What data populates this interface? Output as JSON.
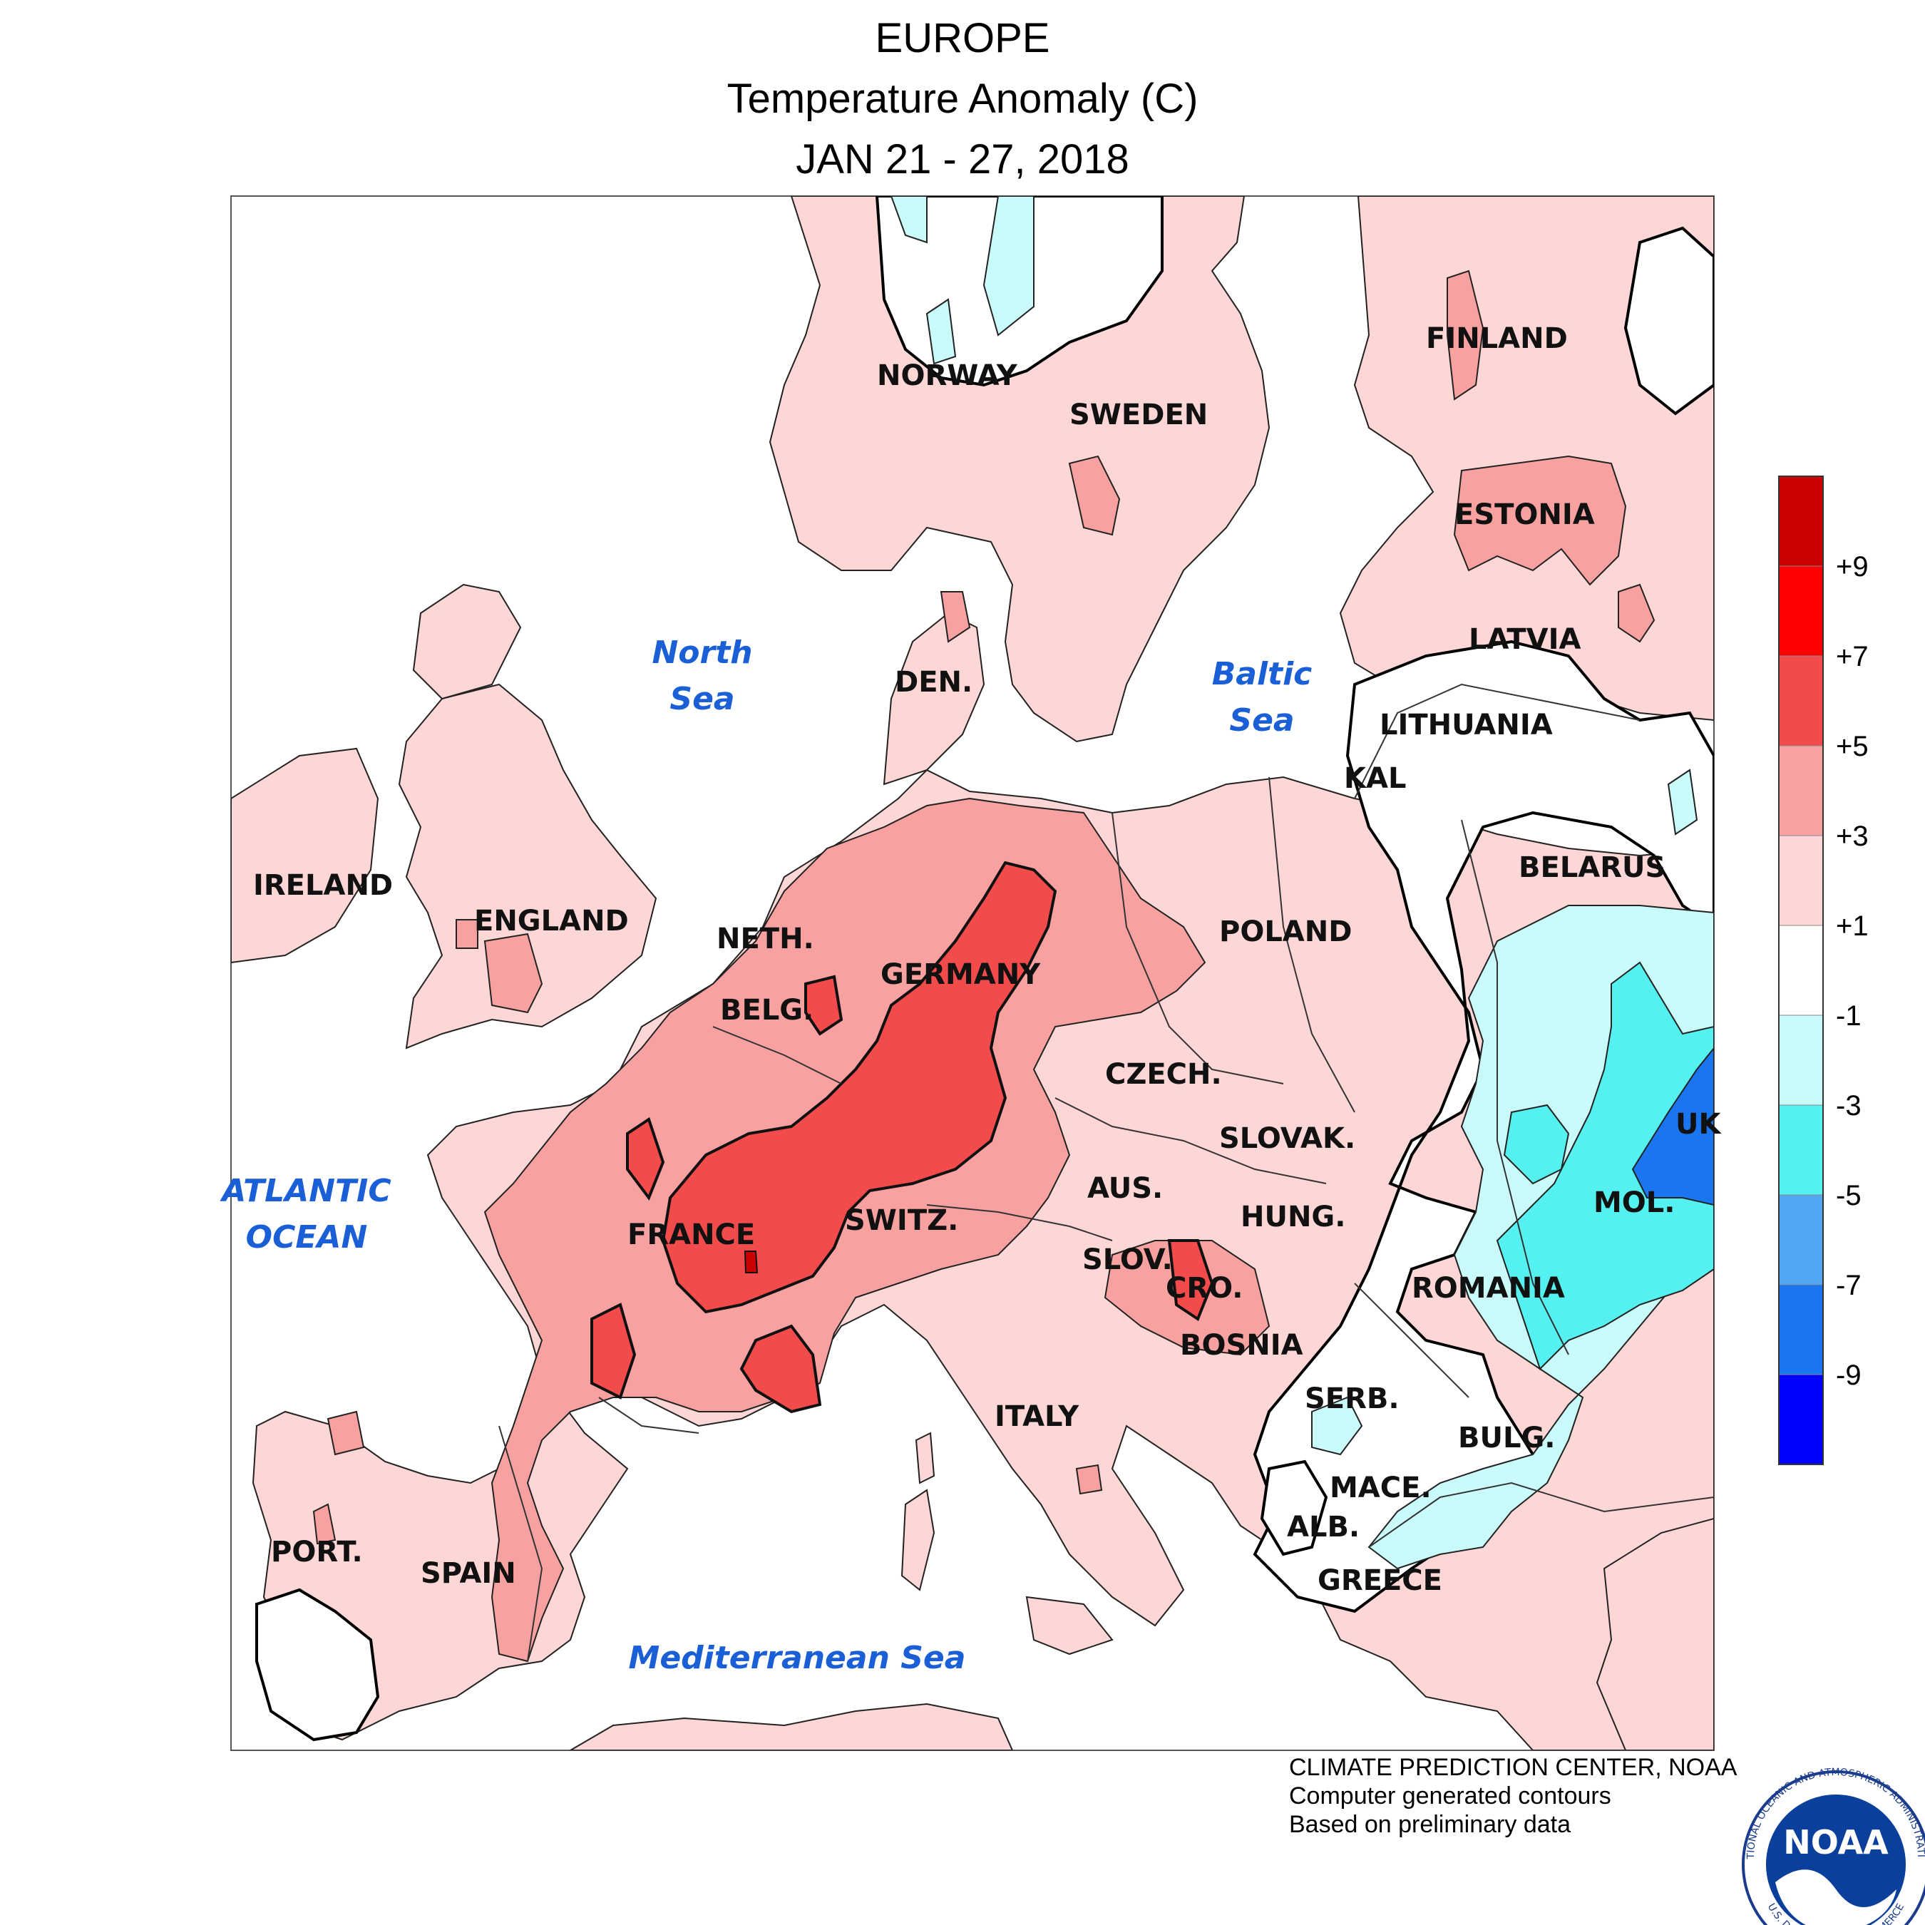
{
  "title": {
    "line1": "EUROPE",
    "line2": "Temperature Anomaly (C)",
    "line3": "JAN 21 - 27, 2018"
  },
  "colorbar": {
    "ticks": [
      "+9",
      "+7",
      "+5",
      "+3",
      "+1",
      "-1",
      "-3",
      "-5",
      "-7",
      "-9"
    ],
    "colors": [
      "#cc0000",
      "#ff0000",
      "#f24b4b",
      "#f7a1a1",
      "#fdd6d6",
      "#ffffff",
      "#c9fbfb",
      "#55f1f1",
      "#53a6f4",
      "#1a76f0",
      "#0000ff"
    ]
  },
  "anomaly_colors": {
    "plus_1_3": "#fdd6d6",
    "plus_3_5": "#f7a1a1",
    "plus_5_7": "#f24b4b",
    "plus_7_9": "#e62020",
    "minus_1_3": "#c9fbfb",
    "minus_3_5": "#55f1f1",
    "minus_7_9": "#1a76f0"
  },
  "countries": {
    "norway": "NORWAY",
    "sweden": "SWEDEN",
    "finland": "FINLAND",
    "estonia": "ESTONIA",
    "latvia": "LATVIA",
    "lithuania": "LITHUANIA",
    "kal": "KAL",
    "belarus": "BELARUS",
    "den": "DEN.",
    "ireland": "IRELAND",
    "england": "ENGLAND",
    "neth": "NETH.",
    "belg": "BELG.",
    "germany": "GERMANY",
    "poland": "POLAND",
    "czech": "CZECH.",
    "slovak": "SLOVAK.",
    "uk": "UK",
    "aus": "AUS.",
    "hung": "HUNG.",
    "mol": "MOL.",
    "france": "FRANCE",
    "switz": "SWITZ.",
    "slov": "SLOV.",
    "cro": "CRO.",
    "romania": "ROMANIA",
    "bosnia": "BOSNIA",
    "serb": "SERB.",
    "bulg": "BULG.",
    "italy": "ITALY",
    "mace": "MACE.",
    "alb": "ALB.",
    "greece": "GREECE",
    "port": "PORT.",
    "spain": "SPAIN"
  },
  "seas": {
    "north_1": "North",
    "north_2": "Sea",
    "baltic_1": "Baltic",
    "baltic_2": "Sea",
    "atlantic_1": "ATLANTIC",
    "atlantic_2": "OCEAN",
    "med": "Mediterranean Sea"
  },
  "credits": {
    "line1": "CLIMATE PREDICTION CENTER, NOAA",
    "line2": "Computer generated contours",
    "line3": "Based on preliminary data"
  },
  "logo": {
    "text": "NOAA",
    "ring_top": "NATIONAL OCEANIC AND ATMOSPHERIC ADMINISTRATION",
    "ring_bottom": "U.S. DEPARTMENT OF COMMERCE"
  }
}
